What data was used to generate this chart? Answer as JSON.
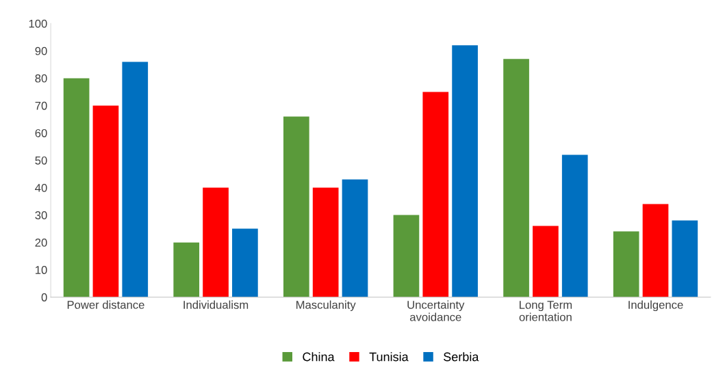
{
  "chart_data": {
    "type": "bar",
    "categories": [
      "Power distance",
      "Individualism",
      "Masculanity",
      "Uncertainty\navoidance",
      "Long Term\norientation",
      "Indulgence"
    ],
    "series": [
      {
        "name": "China",
        "color": "#5a9a3a",
        "values": [
          80,
          20,
          66,
          30,
          87,
          24
        ]
      },
      {
        "name": "Tunisia",
        "color": "#ff0000",
        "values": [
          70,
          40,
          40,
          75,
          26,
          34
        ]
      },
      {
        "name": "Serbia",
        "color": "#0070c0",
        "values": [
          86,
          25,
          43,
          92,
          52,
          28
        ]
      }
    ],
    "ylim": [
      0,
      100
    ],
    "yticks": [
      0,
      10,
      20,
      30,
      40,
      50,
      60,
      70,
      80,
      90,
      100
    ],
    "grid": false,
    "legend": "bottom"
  }
}
